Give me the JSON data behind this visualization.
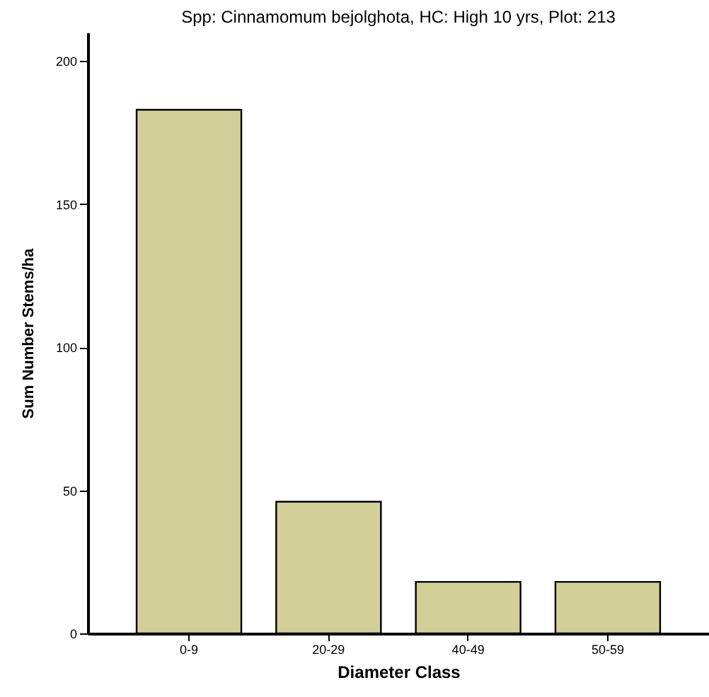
{
  "chart_data": {
    "type": "bar",
    "title": "Spp: Cinnamomum bejolghota, HC: High 10 yrs, Plot: 213",
    "xlabel": "Diameter Class",
    "ylabel": "Sum Number Stems/ha",
    "categories": [
      "0-9",
      "20-29",
      "40-49",
      "50-59"
    ],
    "values": [
      183,
      46,
      18,
      18
    ],
    "color": "#d3cf98",
    "ylim": [
      0,
      210
    ],
    "yticks": [
      0,
      50,
      100,
      150,
      200
    ],
    "grid": false
  }
}
